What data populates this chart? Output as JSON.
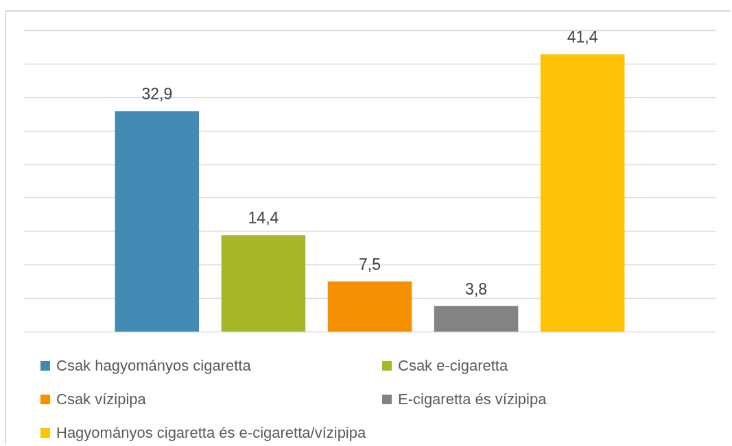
{
  "chart_data": {
    "type": "bar",
    "categories": [
      null
    ],
    "series": [
      {
        "name": "Csak hagyományos cigaretta",
        "color": "#418ab3",
        "values": [
          32.9
        ],
        "value_labels": [
          "32,9"
        ]
      },
      {
        "name": "Csak e-cigaretta",
        "color": "#a6b727",
        "values": [
          14.4
        ],
        "value_labels": [
          "14,4"
        ]
      },
      {
        "name": "Csak vízipipa",
        "color": "#f59100",
        "values": [
          7.5
        ],
        "value_labels": [
          "7,5"
        ]
      },
      {
        "name": "E-cigaretta és vízipipa",
        "color": "#838383",
        "values": [
          3.8
        ],
        "value_labels": [
          "3,8"
        ]
      },
      {
        "name": "Hagyományos cigaretta és e-cigaretta/vízipipa",
        "color": "#fec306",
        "values": [
          41.4
        ],
        "value_labels": [
          "41,4"
        ]
      }
    ],
    "ylim": [
      0,
      45
    ],
    "yticks": [
      {
        "value": 0,
        "label": null
      },
      {
        "value": 5,
        "label": null
      },
      {
        "value": 10,
        "label": null
      },
      {
        "value": 15,
        "label": null
      },
      {
        "value": 20,
        "label": null
      },
      {
        "value": 25,
        "label": null
      },
      {
        "value": 30,
        "label": null
      },
      {
        "value": 35,
        "label": null
      },
      {
        "value": 40,
        "label": null
      },
      {
        "value": 45,
        "label": null
      }
    ],
    "grid": "y",
    "legend": "bottom"
  }
}
